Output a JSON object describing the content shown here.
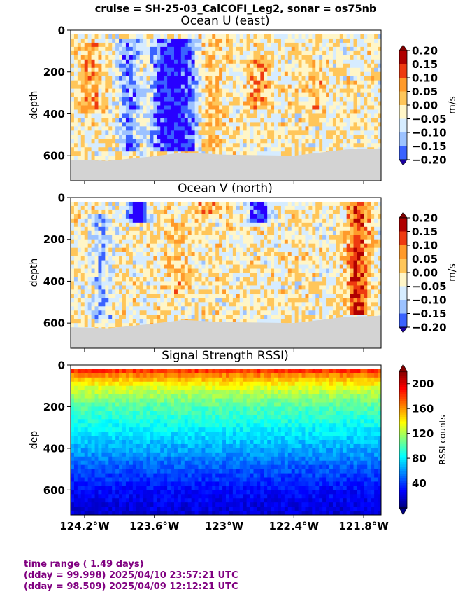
{
  "suptitle": "cruise = SH-25-03_CalCOFI_Leg2,  sonar = os75nb",
  "chart_data": [
    {
      "type": "heatmap",
      "title": "Ocean U (east)",
      "ylabel": "depth",
      "ylim": [
        720,
        0
      ],
      "yticks": [
        "0",
        "200",
        "400",
        "600"
      ],
      "xlim": [
        -124.32,
        -121.65
      ],
      "colorbar": {
        "label": "m/s",
        "ticks": [
          "0.20",
          "0.15",
          "0.10",
          "0.05",
          "0.00",
          "−0.05",
          "−0.10",
          "−0.15",
          "−0.20"
        ],
        "colormap": "jet",
        "levels": 9,
        "range": [
          -0.2,
          0.2
        ]
      },
      "features": [
        {
          "lon_center": -123.82,
          "depth_range": [
            40,
            580
          ],
          "value": -0.12
        },
        {
          "lon_center": -123.55,
          "depth_range": [
            40,
            580
          ],
          "value": -0.14
        },
        {
          "lon_center": -123.42,
          "depth_range": [
            40,
            580
          ],
          "value": -0.15
        },
        {
          "lon_center": -123.3,
          "depth_range": [
            40,
            580
          ],
          "value": -0.12
        },
        {
          "lon_center": -123.1,
          "depth_range": [
            40,
            580
          ],
          "value": 0.05
        },
        {
          "lon_center": -122.7,
          "depth_range": [
            120,
            380
          ],
          "value": 0.08
        },
        {
          "lon_center": -124.15,
          "depth_range": [
            60,
            400
          ],
          "value": 0.08
        },
        {
          "lon_center": -122.2,
          "depth_range": [
            150,
            400
          ],
          "value": 0.05
        }
      ],
      "bottom_depth": [
        {
          "lon": -124.32,
          "depth": 620
        },
        {
          "lon": -124.0,
          "depth": 625
        },
        {
          "lon": -123.65,
          "depth": 605
        },
        {
          "lon": -123.35,
          "depth": 585
        },
        {
          "lon": -123.0,
          "depth": 595
        },
        {
          "lon": -122.4,
          "depth": 600
        },
        {
          "lon": -121.95,
          "depth": 570
        },
        {
          "lon": -121.65,
          "depth": 565
        }
      ]
    },
    {
      "type": "heatmap",
      "title": "Ocean V (north)",
      "ylabel": "depth",
      "ylim": [
        720,
        0
      ],
      "yticks": [
        "0",
        "200",
        "400",
        "600"
      ],
      "xlim": [
        -124.32,
        -121.65
      ],
      "colorbar": {
        "label": "m/s",
        "ticks": [
          "0.20",
          "0.15",
          "0.10",
          "0.05",
          "0.00",
          "−0.05",
          "−0.10",
          "−0.15",
          "−0.20"
        ],
        "colormap": "jet",
        "levels": 9,
        "range": [
          -0.2,
          0.2
        ]
      },
      "features": [
        {
          "lon_center": -123.75,
          "depth_range": [
            20,
            110
          ],
          "value": -0.2
        },
        {
          "lon_center": -123.15,
          "depth_range": [
            20,
            90
          ],
          "value": 0.08
        },
        {
          "lon_center": -122.7,
          "depth_range": [
            20,
            110
          ],
          "value": -0.2
        },
        {
          "lon_center": -121.85,
          "depth_range": [
            20,
            560
          ],
          "value": 0.15
        },
        {
          "lon_center": -123.4,
          "depth_range": [
            120,
            450
          ],
          "value": 0.05
        },
        {
          "lon_center": -124.05,
          "depth_range": [
            80,
            580
          ],
          "value": -0.08
        }
      ],
      "bottom_depth": [
        {
          "lon": -124.32,
          "depth": 620
        },
        {
          "lon": -124.0,
          "depth": 625
        },
        {
          "lon": -123.65,
          "depth": 605
        },
        {
          "lon": -123.35,
          "depth": 585
        },
        {
          "lon": -123.0,
          "depth": 595
        },
        {
          "lon": -122.4,
          "depth": 600
        },
        {
          "lon": -121.95,
          "depth": 570
        },
        {
          "lon": -121.65,
          "depth": 565
        }
      ]
    },
    {
      "type": "heatmap",
      "title": "Signal Strength RSSI)",
      "ylabel": "dep",
      "ylim": [
        720,
        0
      ],
      "yticks": [
        "0",
        "200",
        "400",
        "600"
      ],
      "xlim": [
        -124.32,
        -121.65
      ],
      "xticks": [
        "124.2°W",
        "123.6°W",
        "123°W",
        "122.4°W",
        "121.8°W"
      ],
      "xtick_values": [
        -124.2,
        -123.6,
        -123.0,
        -122.4,
        -121.8
      ],
      "colorbar": {
        "label": "RSSI counts",
        "ticks": [
          "200",
          "160",
          "120",
          "80",
          "40"
        ],
        "tick_values": [
          200,
          160,
          120,
          80,
          40
        ],
        "colormap": "jet",
        "range": [
          0,
          220
        ]
      },
      "profile": [
        {
          "depth": 20,
          "value": 190
        },
        {
          "depth": 60,
          "value": 155
        },
        {
          "depth": 120,
          "value": 125
        },
        {
          "depth": 200,
          "value": 100
        },
        {
          "depth": 300,
          "value": 82
        },
        {
          "depth": 400,
          "value": 65
        },
        {
          "depth": 500,
          "value": 45
        },
        {
          "depth": 600,
          "value": 30
        },
        {
          "depth": 720,
          "value": 18
        }
      ]
    }
  ],
  "footer": {
    "line1": "time range ( 1.49 days)",
    "line2": "(dday = 99.998) 2025/04/10 23:57:21 UTC",
    "line3": "(dday = 98.509) 2025/04/09 12:12:21 UTC"
  }
}
